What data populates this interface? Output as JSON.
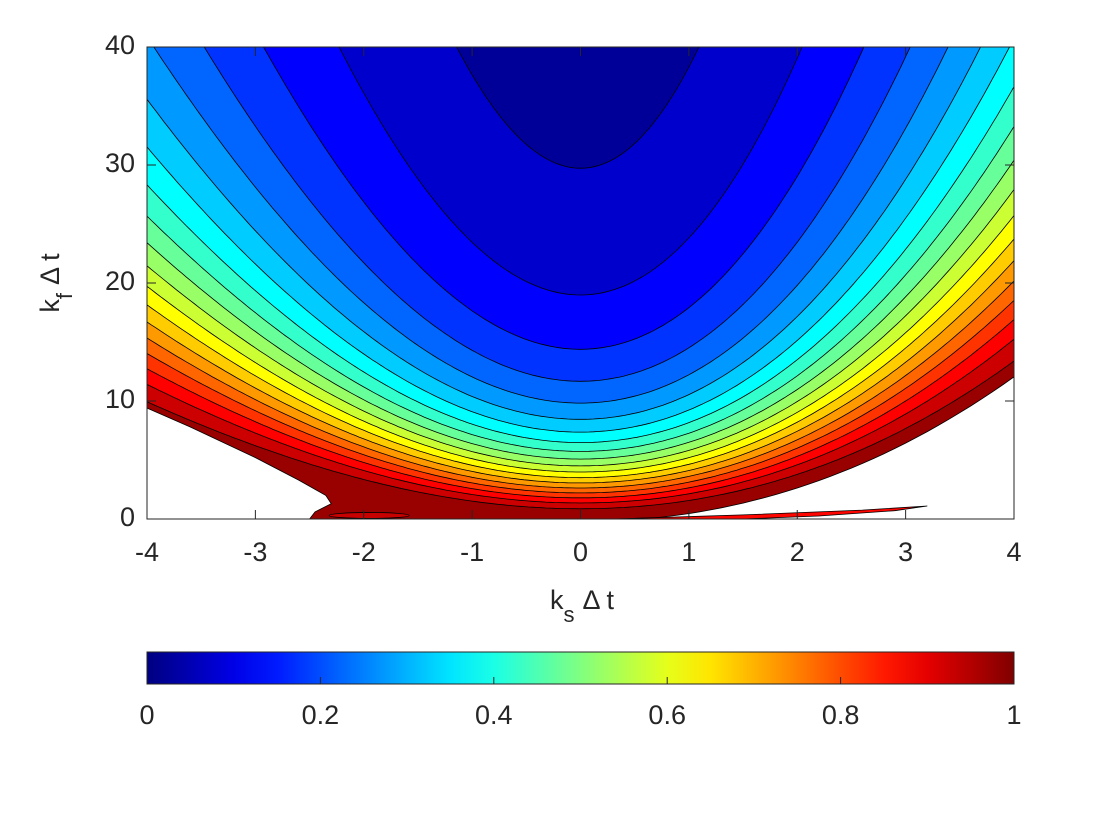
{
  "chart_data": {
    "type": "contour",
    "xlabel": [
      "k",
      "s",
      "Δ t"
    ],
    "ylabel": [
      "k",
      "f",
      "Δ t"
    ],
    "xlim": [
      -4,
      4
    ],
    "ylim": [
      0,
      40
    ],
    "xticks": [
      -4,
      -3,
      -2,
      -1,
      0,
      1,
      2,
      3,
      4
    ],
    "yticks": [
      0,
      10,
      20,
      30,
      40
    ],
    "levels": [
      0,
      0.05,
      0.1,
      0.15,
      0.2,
      0.25,
      0.3,
      0.35,
      0.4,
      0.45,
      0.5,
      0.55,
      0.6,
      0.65,
      0.7,
      0.75,
      0.8,
      0.85,
      0.9,
      0.95,
      1
    ],
    "colormap": "jet",
    "colorbar": {
      "lim": [
        0,
        1
      ],
      "ticks": [
        0,
        0.2,
        0.4,
        0.6,
        0.8,
        1
      ]
    }
  }
}
